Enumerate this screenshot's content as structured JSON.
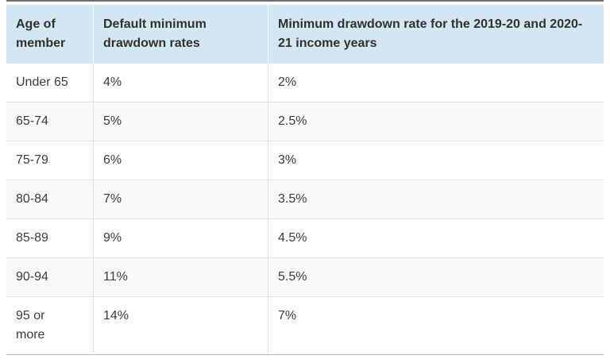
{
  "table": {
    "name": "minimum-drawdown-rates",
    "columns": [
      {
        "label": "Age of member"
      },
      {
        "label": "Default minimum drawdown rates"
      },
      {
        "label": "Minimum drawdown rate for the 2019-20 and 2020-21 income years"
      }
    ],
    "rows": [
      [
        "Under 65",
        "4%",
        "2%"
      ],
      [
        "65-74",
        "5%",
        "2.5%"
      ],
      [
        "75-79",
        "6%",
        "3%"
      ],
      [
        "80-84",
        "7%",
        "3.5%"
      ],
      [
        "85-89",
        "9%",
        "4.5%"
      ],
      [
        "90-94",
        "11%",
        "5.5%"
      ],
      [
        "95 or more",
        "14%",
        "7%"
      ]
    ],
    "colors": {
      "header_background": "#d2e7f2",
      "header_text": "#313131",
      "body_text": "#3c3c3c",
      "top_rule": "#6e6e6e",
      "row_border": "#e2e2e2",
      "bottom_border": "#bdbdbd",
      "alt_row_background": "#fafafa"
    }
  }
}
